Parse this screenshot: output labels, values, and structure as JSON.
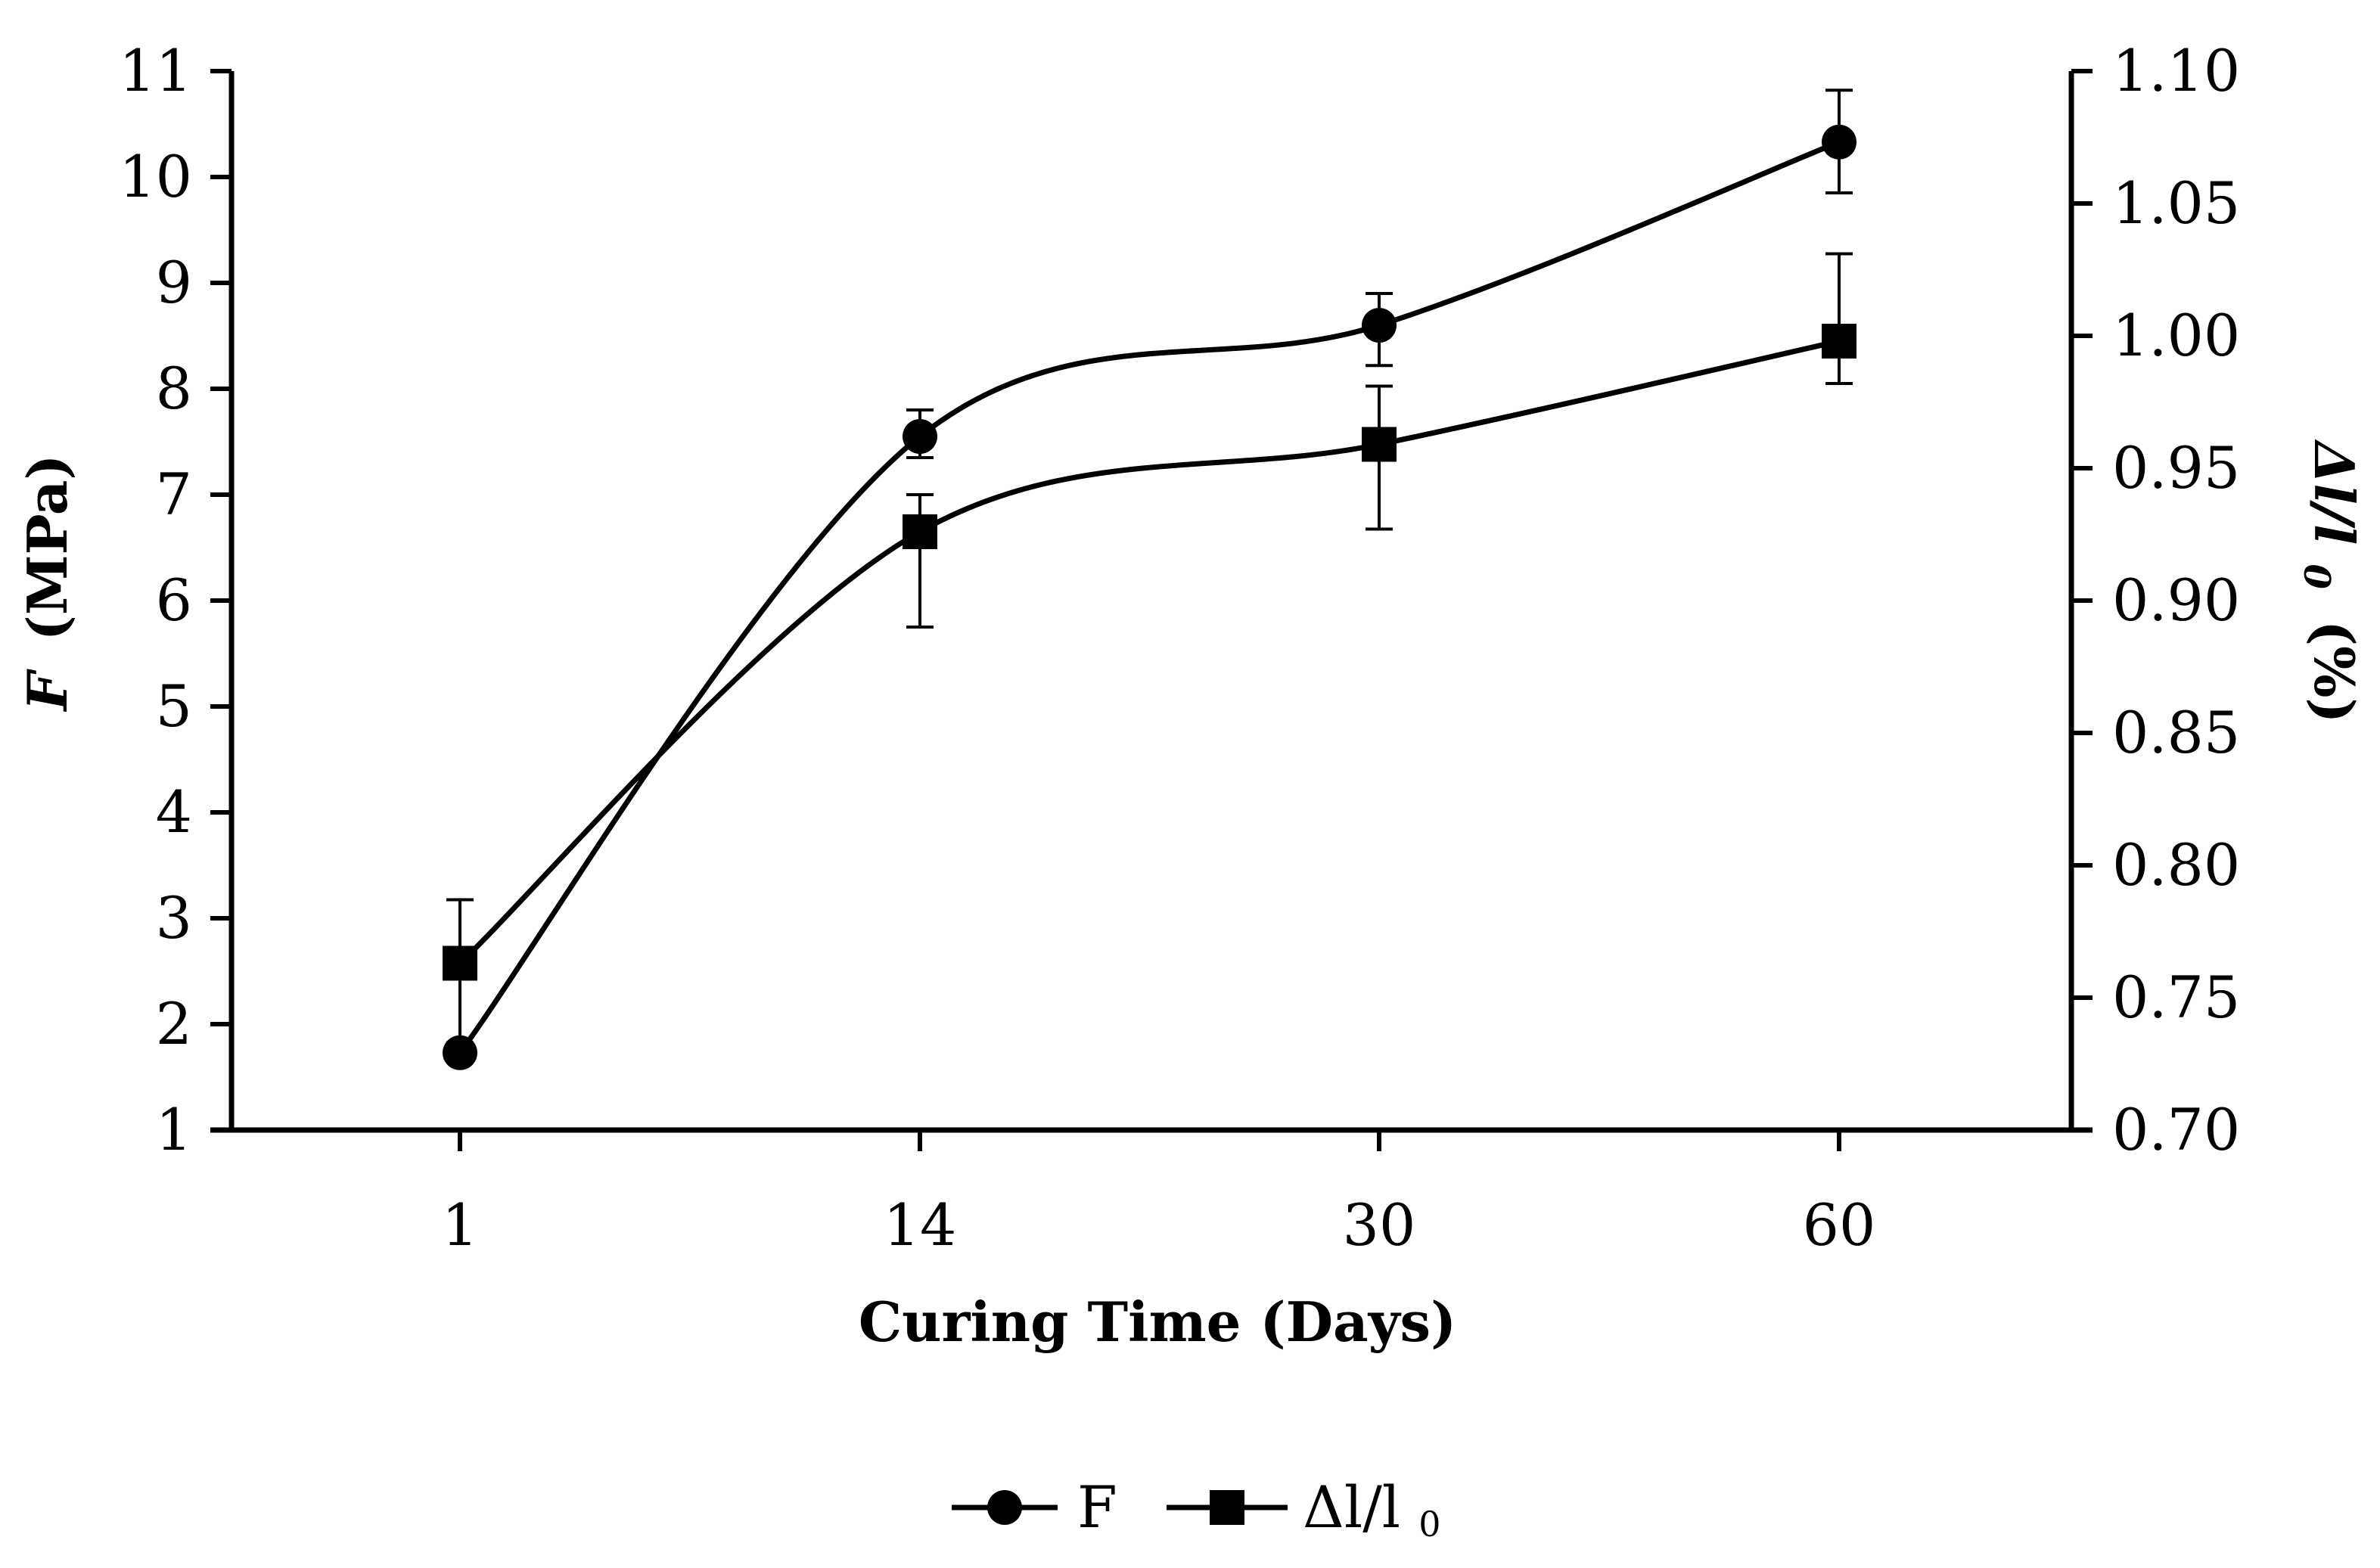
{
  "chart_data": {
    "type": "line",
    "xlabel": "Curing Time (Days)",
    "categories": [
      "1",
      "14",
      "30",
      "60"
    ],
    "y_left": {
      "label_var": "F",
      "label_unit": "(MPa)",
      "lim": [
        1,
        11
      ],
      "ticks": [
        "1",
        "2",
        "3",
        "4",
        "5",
        "6",
        "7",
        "8",
        "9",
        "10",
        "11"
      ]
    },
    "y_right": {
      "label_var": "Δl/l",
      "label_sub": "0",
      "label_unit": "(%)",
      "lim": [
        0.7,
        1.1
      ],
      "ticks": [
        "0.70",
        "0.75",
        "0.80",
        "0.85",
        "0.90",
        "0.95",
        "1.00",
        "1.05",
        "1.10"
      ]
    },
    "series": [
      {
        "name": "F",
        "axis": "left",
        "marker": "circle",
        "values": [
          1.73,
          7.55,
          8.6,
          10.33
        ],
        "error_low": [
          1.73,
          7.35,
          8.22,
          9.85
        ],
        "error_high": [
          1.73,
          7.8,
          8.9,
          10.82
        ]
      },
      {
        "name": "Δl/l",
        "name_sub": "0",
        "axis": "right",
        "marker": "square",
        "values": [
          0.763,
          0.926,
          0.959,
          0.998
        ],
        "error_low": [
          0.733,
          0.89,
          0.927,
          0.982
        ],
        "error_high": [
          0.787,
          0.94,
          0.981,
          1.031
        ]
      }
    ],
    "legend_position": "bottom-center"
  }
}
